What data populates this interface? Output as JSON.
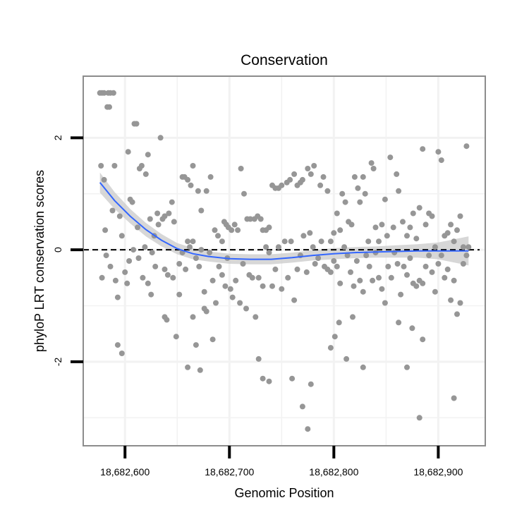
{
  "chart_data": {
    "type": "scatter",
    "title": "Conservation",
    "xlabel": "Genomic Position",
    "ylabel": "phyloP LRT conservation scores",
    "xlim": [
      18682560,
      18682945
    ],
    "ylim": [
      -3.5,
      3.1
    ],
    "x_ticks": [
      {
        "value": 18682600,
        "label": "18,682,600"
      },
      {
        "value": 18682700,
        "label": "18,682,700"
      },
      {
        "value": 18682800,
        "label": "18,682,800"
      },
      {
        "value": 18682900,
        "label": "18,682,900"
      }
    ],
    "y_ticks": [
      {
        "value": -2,
        "label": "-2"
      },
      {
        "value": 0,
        "label": "0"
      },
      {
        "value": 2,
        "label": "2"
      }
    ],
    "x_minor_grid": [
      18682650,
      18682750,
      18682850
    ],
    "y_minor_grid": [
      -3,
      -1,
      1
    ],
    "grid": true,
    "reference_line": {
      "y": 0,
      "style": "dashed"
    },
    "colors": {
      "points": "#969696",
      "smooth_line": "#3366ff",
      "confidence_band": "#c9c9c9",
      "panel_border": "#8c8c8c",
      "grid": "#f2f2f2"
    },
    "points": [
      [
        18682576,
        2.8
      ],
      [
        18682578,
        2.8
      ],
      [
        18682580,
        2.8
      ],
      [
        18682584,
        2.8
      ],
      [
        18682586,
        2.8
      ],
      [
        18682589,
        2.8
      ],
      [
        18682583,
        2.55
      ],
      [
        18682585,
        2.55
      ],
      [
        18682609,
        2.25
      ],
      [
        18682611,
        2.25
      ],
      [
        18682616,
        1.5
      ],
      [
        18682622,
        1.7
      ],
      [
        18682631,
        0.65
      ],
      [
        18682634,
        2.0
      ],
      [
        18682577,
        1.5
      ],
      [
        18682580,
        1.25
      ],
      [
        18682590,
        1.5
      ],
      [
        18682603,
        1.75
      ],
      [
        18682614,
        1.45
      ],
      [
        18682620,
        1.35
      ],
      [
        18682581,
        0.35
      ],
      [
        18682588,
        0.7
      ],
      [
        18682595,
        0.6
      ],
      [
        18682597,
        0.25
      ],
      [
        18682605,
        0.9
      ],
      [
        18682607,
        0.85
      ],
      [
        18682612,
        0.4
      ],
      [
        18682619,
        0.05
      ],
      [
        18682624,
        0.55
      ],
      [
        18682626,
        -0.05
      ],
      [
        18682628,
        0.25
      ],
      [
        18682632,
        0.45
      ],
      [
        18682636,
        0.55
      ],
      [
        18682638,
        0.6
      ],
      [
        18682642,
        0.65
      ],
      [
        18682645,
        0.85
      ],
      [
        18682647,
        0.5
      ],
      [
        18682578,
        -0.5
      ],
      [
        18682582,
        -0.1
      ],
      [
        18682586,
        -0.3
      ],
      [
        18682591,
        -0.55
      ],
      [
        18682593,
        -0.85
      ],
      [
        18682600,
        -0.4
      ],
      [
        18682602,
        -0.6
      ],
      [
        18682604,
        -0.2
      ],
      [
        18682608,
        0.0
      ],
      [
        18682613,
        -0.15
      ],
      [
        18682617,
        -0.5
      ],
      [
        18682622,
        -0.6
      ],
      [
        18682625,
        -0.8
      ],
      [
        18682629,
        -0.3
      ],
      [
        18682638,
        -0.35
      ],
      [
        18682641,
        -0.45
      ],
      [
        18682646,
        -0.5
      ],
      [
        18682652,
        -0.8
      ],
      [
        18682593,
        -1.7
      ],
      [
        18682597,
        -1.85
      ],
      [
        18682638,
        -1.2
      ],
      [
        18682640,
        -1.25
      ],
      [
        18682649,
        -1.55
      ],
      [
        18682655,
        1.3
      ],
      [
        18682657,
        1.3
      ],
      [
        18682660,
        1.25
      ],
      [
        18682663,
        1.15
      ],
      [
        18682665,
        1.5
      ],
      [
        18682670,
        1.05
      ],
      [
        18682673,
        0.7
      ],
      [
        18682678,
        1.05
      ],
      [
        18682682,
        1.3
      ],
      [
        18682686,
        0.35
      ],
      [
        18682689,
        0.25
      ],
      [
        18682693,
        0.15
      ],
      [
        18682695,
        0.5
      ],
      [
        18682697,
        0.45
      ],
      [
        18682699,
        0.4
      ],
      [
        18682702,
        0.35
      ],
      [
        18682705,
        0.45
      ],
      [
        18682708,
        0.35
      ],
      [
        18682711,
        1.45
      ],
      [
        18682714,
        1.0
      ],
      [
        18682717,
        0.55
      ],
      [
        18682720,
        0.55
      ],
      [
        18682724,
        0.55
      ],
      [
        18682727,
        0.6
      ],
      [
        18682730,
        0.55
      ],
      [
        18682732,
        0.35
      ],
      [
        18682735,
        0.35
      ],
      [
        18682738,
        0.4
      ],
      [
        18682741,
        1.15
      ],
      [
        18682744,
        1.1
      ],
      [
        18682747,
        1.1
      ],
      [
        18682750,
        1.15
      ],
      [
        18682755,
        1.2
      ],
      [
        18682758,
        1.25
      ],
      [
        18682762,
        1.35
      ],
      [
        18682765,
        1.15
      ],
      [
        18682768,
        1.2
      ],
      [
        18682770,
        1.25
      ],
      [
        18682775,
        1.45
      ],
      [
        18682778,
        1.35
      ],
      [
        18682781,
        1.5
      ],
      [
        18682787,
        1.15
      ],
      [
        18682790,
        1.3
      ],
      [
        18682794,
        1.05
      ],
      [
        18682652,
        -0.25
      ],
      [
        18682655,
        -0.05
      ],
      [
        18682658,
        -0.35
      ],
      [
        18682660,
        0.15
      ],
      [
        18682662,
        0.05
      ],
      [
        18682665,
        0.15
      ],
      [
        18682668,
        -0.15
      ],
      [
        18682671,
        -0.3
      ],
      [
        18682673,
        0.0
      ],
      [
        18682676,
        -0.75
      ],
      [
        18682678,
        -1.1
      ],
      [
        18682681,
        -0.05
      ],
      [
        18682684,
        -0.55
      ],
      [
        18682687,
        -0.95
      ],
      [
        18682690,
        -0.3
      ],
      [
        18682693,
        -0.45
      ],
      [
        18682696,
        -0.65
      ],
      [
        18682698,
        -0.15
      ],
      [
        18682701,
        -0.7
      ],
      [
        18682703,
        -0.85
      ],
      [
        18682706,
        -0.55
      ],
      [
        18682710,
        -0.95
      ],
      [
        18682713,
        -0.25
      ],
      [
        18682716,
        -1.05
      ],
      [
        18682719,
        -0.45
      ],
      [
        18682722,
        -0.5
      ],
      [
        18682725,
        -1.2
      ],
      [
        18682728,
        -0.5
      ],
      [
        18682732,
        -0.65
      ],
      [
        18682735,
        0.05
      ],
      [
        18682738,
        -0.05
      ],
      [
        18682741,
        -0.65
      ],
      [
        18682744,
        -0.35
      ],
      [
        18682747,
        0.05
      ],
      [
        18682750,
        -0.7
      ],
      [
        18682753,
        0.15
      ],
      [
        18682756,
        -0.5
      ],
      [
        18682759,
        0.15
      ],
      [
        18682762,
        -0.9
      ],
      [
        18682765,
        -0.35
      ],
      [
        18682768,
        -0.1
      ],
      [
        18682771,
        0.25
      ],
      [
        18682774,
        -0.4
      ],
      [
        18682777,
        0.3
      ],
      [
        18682780,
        0.05
      ],
      [
        18682782,
        -0.25
      ],
      [
        18682785,
        -0.15
      ],
      [
        18682788,
        0.15
      ],
      [
        18682791,
        -0.3
      ],
      [
        18682794,
        -0.35
      ],
      [
        18682797,
        -0.4
      ],
      [
        18682660,
        -2.1
      ],
      [
        18682665,
        -1.2
      ],
      [
        18682668,
        -1.7
      ],
      [
        18682672,
        -2.15
      ],
      [
        18682676,
        -1.05
      ],
      [
        18682684,
        -1.6
      ],
      [
        18682728,
        -1.95
      ],
      [
        18682732,
        -2.3
      ],
      [
        18682738,
        -2.35
      ],
      [
        18682760,
        -2.3
      ],
      [
        18682770,
        -2.8
      ],
      [
        18682775,
        -3.2
      ],
      [
        18682778,
        -2.4
      ],
      [
        18682797,
        -1.75
      ],
      [
        18682801,
        -1.55
      ],
      [
        18682805,
        -1.3
      ],
      [
        18682797,
        0.15
      ],
      [
        18682800,
        0.3
      ],
      [
        18682803,
        0.65
      ],
      [
        18682806,
        0.35
      ],
      [
        18682808,
        1.0
      ],
      [
        18682811,
        0.85
      ],
      [
        18682814,
        0.5
      ],
      [
        18682817,
        0.45
      ],
      [
        18682820,
        1.3
      ],
      [
        18682823,
        1.1
      ],
      [
        18682825,
        0.85
      ],
      [
        18682828,
        1.3
      ],
      [
        18682830,
        1.0
      ],
      [
        18682833,
        0.15
      ],
      [
        18682836,
        1.55
      ],
      [
        18682838,
        1.45
      ],
      [
        18682840,
        0.4
      ],
      [
        18682843,
        0.15
      ],
      [
        18682846,
        0.45
      ],
      [
        18682849,
        0.9
      ],
      [
        18682851,
        0.25
      ],
      [
        18682854,
        1.65
      ],
      [
        18682857,
        0.4
      ],
      [
        18682860,
        1.35
      ],
      [
        18682862,
        1.05
      ],
      [
        18682866,
        0.5
      ],
      [
        18682870,
        0.25
      ],
      [
        18682873,
        0.4
      ],
      [
        18682876,
        0.65
      ],
      [
        18682879,
        0.2
      ],
      [
        18682882,
        0.75
      ],
      [
        18682885,
        1.8
      ],
      [
        18682888,
        0.45
      ],
      [
        18682891,
        0.65
      ],
      [
        18682894,
        0.6
      ],
      [
        18682897,
        0.05
      ],
      [
        18682900,
        1.75
      ],
      [
        18682903,
        1.6
      ],
      [
        18682906,
        0.25
      ],
      [
        18682909,
        0.3
      ],
      [
        18682912,
        0.45
      ],
      [
        18682915,
        0.15
      ],
      [
        18682918,
        0.35
      ],
      [
        18682921,
        0.6
      ],
      [
        18682924,
        0.05
      ],
      [
        18682927,
        1.85
      ],
      [
        18682929,
        0.05
      ],
      [
        18682800,
        -0.2
      ],
      [
        18682803,
        -0.3
      ],
      [
        18682806,
        -0.6
      ],
      [
        18682810,
        0.05
      ],
      [
        18682813,
        -0.1
      ],
      [
        18682816,
        -0.4
      ],
      [
        18682819,
        -0.65
      ],
      [
        18682822,
        -0.2
      ],
      [
        18682825,
        -0.55
      ],
      [
        18682828,
        -0.75
      ],
      [
        18682831,
        -0.1
      ],
      [
        18682834,
        -0.3
      ],
      [
        18682837,
        -0.55
      ],
      [
        18682840,
        -0.05
      ],
      [
        18682843,
        -0.5
      ],
      [
        18682846,
        -0.7
      ],
      [
        18682849,
        -0.95
      ],
      [
        18682852,
        -0.3
      ],
      [
        18682855,
        -0.5
      ],
      [
        18682858,
        -0.05
      ],
      [
        18682861,
        -0.25
      ],
      [
        18682864,
        -0.8
      ],
      [
        18682867,
        -0.3
      ],
      [
        18682870,
        -0.45
      ],
      [
        18682873,
        -0.15
      ],
      [
        18682876,
        -0.6
      ],
      [
        18682879,
        -0.65
      ],
      [
        18682882,
        -0.55
      ],
      [
        18682885,
        -0.6
      ],
      [
        18682888,
        -0.3
      ],
      [
        18682891,
        -0.1
      ],
      [
        18682894,
        -0.4
      ],
      [
        18682897,
        -0.75
      ],
      [
        18682900,
        -0.25
      ],
      [
        18682903,
        -0.1
      ],
      [
        18682906,
        -0.5
      ],
      [
        18682909,
        -0.35
      ],
      [
        18682912,
        -0.9
      ],
      [
        18682915,
        -0.55
      ],
      [
        18682918,
        -1.15
      ],
      [
        18682921,
        -0.95
      ],
      [
        18682924,
        -0.25
      ],
      [
        18682927,
        -0.1
      ],
      [
        18682812,
        -1.95
      ],
      [
        18682818,
        -1.2
      ],
      [
        18682828,
        -2.1
      ],
      [
        18682862,
        -1.3
      ],
      [
        18682870,
        -2.1
      ],
      [
        18682875,
        -1.4
      ],
      [
        18682882,
        -3.0
      ],
      [
        18682885,
        -1.6
      ],
      [
        18682915,
        -2.65
      ]
    ],
    "smooth": [
      [
        18682576,
        1.2
      ],
      [
        18682590,
        0.88
      ],
      [
        18682605,
        0.6
      ],
      [
        18682620,
        0.36
      ],
      [
        18682635,
        0.17
      ],
      [
        18682650,
        0.02
      ],
      [
        18682665,
        -0.07
      ],
      [
        18682680,
        -0.12
      ],
      [
        18682700,
        -0.16
      ],
      [
        18682720,
        -0.17
      ],
      [
        18682740,
        -0.17
      ],
      [
        18682760,
        -0.14
      ],
      [
        18682780,
        -0.1
      ],
      [
        18682800,
        -0.07
      ],
      [
        18682820,
        -0.05
      ],
      [
        18682840,
        -0.04
      ],
      [
        18682860,
        -0.03
      ],
      [
        18682880,
        -0.02
      ],
      [
        18682900,
        -0.02
      ],
      [
        18682929,
        -0.02
      ]
    ],
    "band_halfwidth": [
      [
        18682576,
        0.18
      ],
      [
        18682590,
        0.15
      ],
      [
        18682605,
        0.13
      ],
      [
        18682620,
        0.12
      ],
      [
        18682635,
        0.11
      ],
      [
        18682650,
        0.1
      ],
      [
        18682665,
        0.1
      ],
      [
        18682680,
        0.09
      ],
      [
        18682700,
        0.09
      ],
      [
        18682720,
        0.09
      ],
      [
        18682740,
        0.09
      ],
      [
        18682760,
        0.09
      ],
      [
        18682780,
        0.09
      ],
      [
        18682800,
        0.1
      ],
      [
        18682820,
        0.1
      ],
      [
        18682840,
        0.1
      ],
      [
        18682860,
        0.11
      ],
      [
        18682880,
        0.12
      ],
      [
        18682900,
        0.15
      ],
      [
        18682929,
        0.26
      ]
    ]
  }
}
